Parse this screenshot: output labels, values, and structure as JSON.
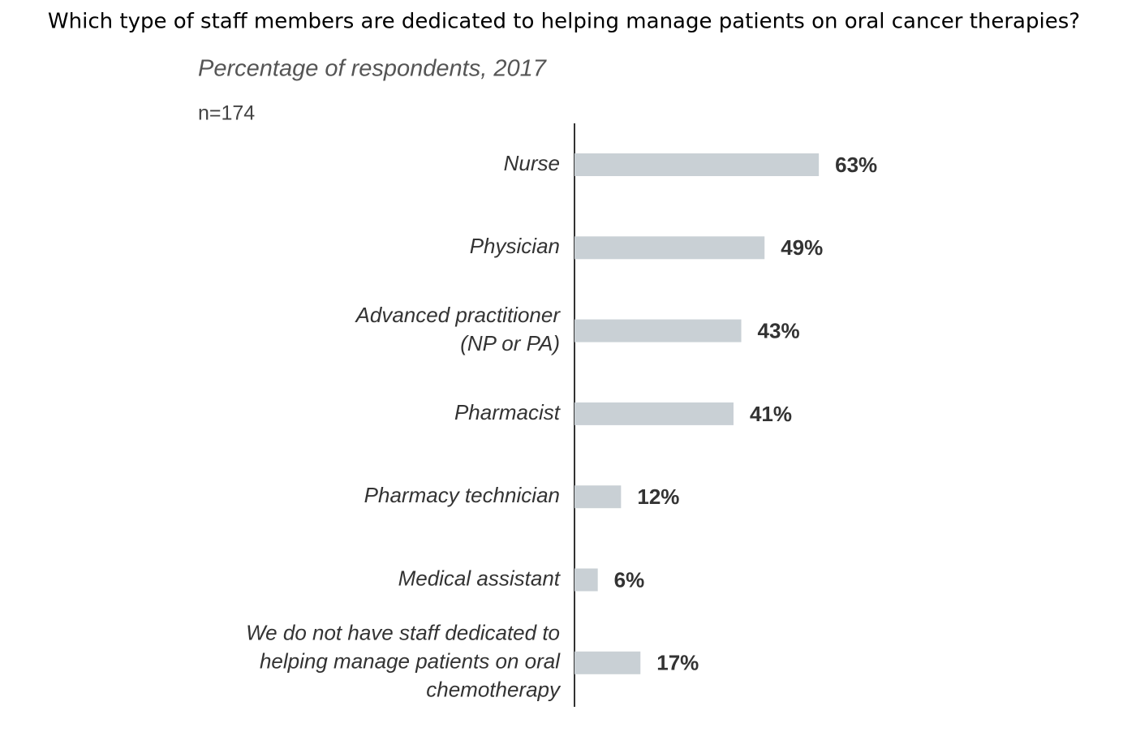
{
  "chart_data": {
    "type": "hbar",
    "title": "Which type of staff members are dedicated to helping manage patients on oral cancer therapies?",
    "subtitle": "Percentage of respondents, 2017",
    "note": "n=174",
    "categories": [
      [
        "Nurse"
      ],
      [
        "Physician"
      ],
      [
        "Advanced practitioner",
        "(NP or PA)"
      ],
      [
        "Pharmacist"
      ],
      [
        "Pharmacy technician"
      ],
      [
        "Medical assistant"
      ],
      [
        "We do not have staff dedicated to",
        "helping manage patients on oral",
        "chemotherapy"
      ]
    ],
    "values": [
      63,
      49,
      43,
      41,
      12,
      6,
      17
    ],
    "value_labels": [
      "63%",
      "49%",
      "43%",
      "41%",
      "12%",
      "6%",
      "17%"
    ],
    "color": "#c9d0d5",
    "xlim": [
      0,
      100
    ]
  }
}
